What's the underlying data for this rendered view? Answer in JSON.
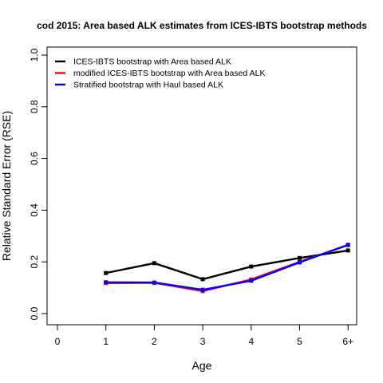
{
  "chart_data": {
    "type": "line",
    "title": "cod 2015: Area based ALK estimates from ICES-IBTS bootstrap methods",
    "xlabel": "Age",
    "ylabel": "Relative Standard Error (RSE)",
    "categories": [
      "0",
      "1",
      "2",
      "3",
      "4",
      "5",
      "6+"
    ],
    "ylim": [
      0,
      1.0
    ],
    "yticks": [
      "0.0",
      "0.2",
      "0.4",
      "0.6",
      "0.8",
      "1.0"
    ],
    "grid": false,
    "legend_position": "top-left",
    "series": [
      {
        "name": "ICES-IBTS bootstrap with Area based ALK",
        "color": "#000000",
        "values": [
          null,
          0.157,
          0.195,
          0.133,
          0.182,
          0.215,
          0.244
        ]
      },
      {
        "name": "modified ICES-IBTS bootstrap with Area based ALK",
        "color": "#ff0000",
        "values": [
          null,
          0.118,
          0.119,
          0.087,
          0.132,
          0.2,
          0.265
        ]
      },
      {
        "name": "Stratified bootstrap with Haul based ALK",
        "color": "#0000ff",
        "values": [
          null,
          0.121,
          0.12,
          0.092,
          0.127,
          0.198,
          0.266
        ]
      }
    ]
  }
}
